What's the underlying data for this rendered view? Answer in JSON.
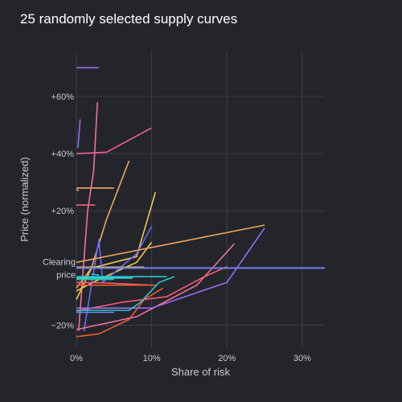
{
  "chart_data": {
    "type": "line",
    "title": "25 randomly selected supply curves",
    "xlabel": "Share of risk",
    "ylabel": "Price (normalized)",
    "xlim": [
      0,
      33
    ],
    "ylim": [
      -28,
      76
    ],
    "x_ticks": [
      0,
      10,
      20,
      30
    ],
    "x_tick_labels": [
      "0%",
      "10%",
      "20%",
      "30%"
    ],
    "y_ticks": [
      -20,
      20,
      40,
      60
    ],
    "y_tick_labels": [
      "−20%",
      "+20%",
      "+40%",
      "+60%"
    ],
    "grid": true,
    "legend": "none",
    "reference_line": {
      "y": 0,
      "label_line1": "Clearing",
      "label_line2": "price",
      "color": "#6f7ff2"
    },
    "series": [
      {
        "color": "#9b6bf2",
        "points": [
          [
            0,
            70
          ],
          [
            3,
            70
          ]
        ]
      },
      {
        "color": "#9b6bf2",
        "points": [
          [
            0.2,
            42
          ],
          [
            0.5,
            52
          ]
        ]
      },
      {
        "color": "#f2709c",
        "points": [
          [
            0.3,
            -22
          ],
          [
            1.5,
            20
          ],
          [
            2.3,
            34
          ],
          [
            2.8,
            58
          ]
        ]
      },
      {
        "color": "#f25e9c",
        "points": [
          [
            0,
            40
          ],
          [
            4,
            40.5
          ],
          [
            10,
            49
          ]
        ]
      },
      {
        "color": "#f0a65e",
        "points": [
          [
            0,
            28
          ],
          [
            5,
            28
          ]
        ]
      },
      {
        "color": "#f0a65e",
        "points": [
          [
            0,
            -7
          ],
          [
            2,
            0
          ],
          [
            4,
            17
          ],
          [
            7,
            37.5
          ]
        ]
      },
      {
        "color": "#f25e6e",
        "points": [
          [
            0,
            22
          ],
          [
            2.5,
            22
          ]
        ]
      },
      {
        "color": "#f0c94f",
        "points": [
          [
            0,
            -11
          ],
          [
            2,
            0
          ],
          [
            8,
            4
          ],
          [
            10.5,
            26.5
          ]
        ]
      },
      {
        "color": "#f0c94f",
        "points": [
          [
            0,
            -8
          ],
          [
            3,
            -4
          ],
          [
            8,
            2
          ],
          [
            10,
            9
          ]
        ]
      },
      {
        "color": "#6b6bf2",
        "points": [
          [
            1,
            -22
          ],
          [
            3,
            10
          ],
          [
            3.5,
            -5
          ],
          [
            8,
            5
          ],
          [
            10,
            14.5
          ]
        ]
      },
      {
        "color": "#f0a65e",
        "points": [
          [
            0,
            2
          ],
          [
            25,
            15
          ]
        ]
      },
      {
        "color": "#f0c94f",
        "points": [
          [
            0,
            0.3
          ],
          [
            9,
            0.3
          ]
        ]
      },
      {
        "color": "#f25e6e",
        "points": [
          [
            0,
            -5
          ],
          [
            4,
            -5.2
          ],
          [
            10,
            -6
          ]
        ]
      },
      {
        "color": "#ef5a2f",
        "points": [
          [
            0,
            -6
          ],
          [
            10.5,
            -6
          ]
        ]
      },
      {
        "color": "#ef5a2f",
        "points": [
          [
            0,
            -24
          ],
          [
            3,
            -23
          ],
          [
            7,
            -18
          ],
          [
            9,
            -11
          ],
          [
            11.5,
            -7
          ]
        ]
      },
      {
        "color": "#f2709c",
        "points": [
          [
            0,
            -21.5
          ],
          [
            8,
            -17
          ],
          [
            16,
            -6
          ],
          [
            21,
            8.5
          ]
        ]
      },
      {
        "color": "#f25e6e",
        "points": [
          [
            0,
            -15
          ],
          [
            6,
            -12
          ],
          [
            12,
            -10
          ],
          [
            17,
            -3
          ],
          [
            20,
            0.5
          ]
        ]
      },
      {
        "color": "#9b6bf2",
        "points": [
          [
            0,
            -14
          ],
          [
            10,
            -14
          ],
          [
            20,
            -5
          ],
          [
            25,
            14
          ]
        ]
      },
      {
        "color": "#2ec4d6",
        "points": [
          [
            0,
            -14.8
          ],
          [
            7,
            -14.8
          ],
          [
            8.5,
            -12
          ],
          [
            11,
            -5
          ],
          [
            13,
            -3
          ]
        ]
      },
      {
        "color": "#2ee6d6",
        "points": [
          [
            0,
            -3.5
          ],
          [
            7.5,
            -3.5
          ]
        ]
      },
      {
        "color": "#2ec4a6",
        "points": [
          [
            0,
            -4
          ],
          [
            5,
            -4
          ]
        ]
      },
      {
        "color": "#2ec4d6",
        "points": [
          [
            0,
            -3
          ],
          [
            12,
            -3
          ]
        ]
      },
      {
        "color": "#6b8bf2",
        "points": [
          [
            0,
            -15.5
          ],
          [
            5,
            -15.5
          ]
        ]
      },
      {
        "color": "#2ec4d6",
        "points": [
          [
            2,
            -2
          ],
          [
            3,
            -2.5
          ]
        ]
      },
      {
        "color": "#f0a65e",
        "points": [
          [
            0,
            27.5
          ],
          [
            0.3,
            27
          ]
        ]
      }
    ]
  }
}
